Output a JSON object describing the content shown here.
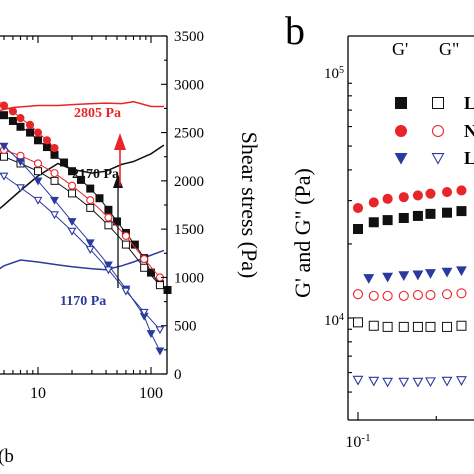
{
  "panel_b_label": "b",
  "colors": {
    "black": "#111111",
    "red": "#e8262a",
    "blue": "#2b3a9e"
  },
  "chart_data": [
    {
      "panel": "a",
      "type": "line",
      "xaxis_label": "(b",
      "x_ticks": [
        "10",
        "100"
      ],
      "x_scale": "log",
      "ylabel_right": "Shear stress (Pa)",
      "ylim_right": [
        0,
        3500
      ],
      "y_ticks_right": [
        "0",
        "500",
        "1000",
        "1500",
        "2000",
        "2500",
        "3000",
        "3500"
      ],
      "annotations": [
        {
          "text": "2805 Pa",
          "color": "#e8262a"
        },
        {
          "text": "2170 Pa",
          "color": "#111111"
        },
        {
          "text": "1170 Pa",
          "color": "#2b3a9e"
        }
      ],
      "series": [
        {
          "kind": "stress",
          "color": "#e8262a",
          "x": [
            3.5,
            6,
            10,
            15,
            20,
            30,
            40,
            55,
            70,
            100,
            130
          ],
          "y": [
            2700,
            2760,
            2780,
            2780,
            2790,
            2800,
            2805,
            2800,
            2820,
            2770,
            2770
          ]
        },
        {
          "kind": "stress",
          "color": "#111111",
          "x": [
            3.5,
            5,
            7,
            10,
            15,
            20,
            30,
            40,
            55,
            70,
            100,
            130
          ],
          "y": [
            1600,
            1750,
            1900,
            2050,
            2180,
            2120,
            2080,
            2100,
            2170,
            2200,
            2280,
            2370
          ]
        },
        {
          "kind": "stress",
          "color": "#2b3a9e",
          "x": [
            3.5,
            5,
            7,
            10,
            15,
            20,
            30,
            40,
            55,
            70,
            100,
            130
          ],
          "y": [
            1000,
            1120,
            1180,
            1160,
            1130,
            1110,
            1090,
            1080,
            1120,
            1160,
            1230,
            1280
          ]
        },
        {
          "kind": "modulus",
          "marker": "square-filled",
          "color": "#111111",
          "x": [
            3.5,
            4.2,
            5,
            6,
            7,
            8.5,
            10,
            12,
            14,
            17,
            20,
            24,
            29,
            35,
            42,
            50,
            60,
            72,
            87,
            100,
            120,
            140
          ],
          "y": [
            2800,
            2740,
            2680,
            2620,
            2560,
            2500,
            2420,
            2350,
            2270,
            2190,
            2100,
            2010,
            1920,
            1820,
            1700,
            1580,
            1460,
            1340,
            1200,
            1050,
            930,
            870
          ]
        },
        {
          "kind": "modulus",
          "marker": "square-open",
          "color": "#111111",
          "x": [
            3.5,
            5,
            7,
            10,
            14,
            20,
            29,
            42,
            60,
            87,
            120
          ],
          "y": [
            2300,
            2250,
            2180,
            2100,
            2000,
            1870,
            1720,
            1540,
            1340,
            1100,
            920
          ]
        },
        {
          "kind": "modulus",
          "marker": "circle-filled",
          "color": "#e8262a",
          "x": [
            3.5,
            4.2,
            5,
            6,
            7,
            8.5,
            10,
            12,
            14
          ],
          "y": [
            2900,
            2850,
            2780,
            2720,
            2650,
            2580,
            2500,
            2420,
            2340
          ]
        },
        {
          "kind": "modulus",
          "marker": "circle-open",
          "color": "#e8262a",
          "x": [
            3.5,
            5,
            7,
            10,
            14,
            20,
            29,
            42,
            60,
            87,
            120
          ],
          "y": [
            2380,
            2320,
            2260,
            2180,
            2080,
            1950,
            1800,
            1620,
            1430,
            1190,
            1000
          ]
        },
        {
          "kind": "modulus",
          "marker": "triangle-filled",
          "color": "#2b3a9e",
          "x": [
            3.5,
            5,
            7,
            10,
            14,
            20,
            29,
            42,
            60,
            87,
            100,
            120
          ],
          "y": [
            2500,
            2360,
            2200,
            2000,
            1800,
            1580,
            1360,
            1130,
            880,
            600,
            420,
            240
          ]
        },
        {
          "kind": "modulus",
          "marker": "triangle-open",
          "color": "#2b3a9e",
          "x": [
            3.5,
            5,
            7,
            10,
            14,
            20,
            29,
            42,
            60,
            87,
            120
          ],
          "y": [
            2150,
            2050,
            1930,
            1800,
            1650,
            1480,
            1290,
            1080,
            860,
            640,
            460
          ]
        }
      ]
    },
    {
      "panel": "b",
      "type": "scatter",
      "ylabel": "G' and G\" (Pa)",
      "x_scale": "log",
      "y_scale": "log",
      "x_ticks": [
        "10-1"
      ],
      "y_ticks": [
        "104",
        "105"
      ],
      "legend_headers": [
        "G'",
        "G\""
      ],
      "legend_labels": [
        "L",
        "N",
        "L"
      ],
      "series": [
        {
          "marker": "circle-filled",
          "color": "#e8262a",
          "x": [
            0.1,
            0.115,
            0.13,
            0.15,
            0.17,
            0.19,
            0.22,
            0.25,
            0.28,
            0.32,
            0.36
          ],
          "y": [
            28000,
            29500,
            30500,
            31000,
            31500,
            32000,
            32500,
            33000,
            33500,
            34000,
            34500
          ]
        },
        {
          "marker": "square-filled",
          "color": "#111111",
          "x": [
            0.1,
            0.115,
            0.13,
            0.15,
            0.17,
            0.19,
            0.22,
            0.25,
            0.28,
            0.32,
            0.36
          ],
          "y": [
            23000,
            24500,
            25000,
            25500,
            26000,
            26500,
            26800,
            27200,
            27600,
            28000,
            28300
          ]
        },
        {
          "marker": "triangle-filled",
          "color": "#2b3a9e",
          "x": [
            0.11,
            0.13,
            0.15,
            0.17,
            0.19,
            0.22,
            0.25,
            0.28,
            0.32,
            0.36
          ],
          "y": [
            14500,
            14700,
            14900,
            15000,
            15200,
            15400,
            15600,
            15800,
            16000,
            16200
          ]
        },
        {
          "marker": "circle-open",
          "color": "#e8262a",
          "x": [
            0.1,
            0.115,
            0.13,
            0.15,
            0.17,
            0.19,
            0.22,
            0.25,
            0.28
          ],
          "y": [
            12500,
            12300,
            12300,
            12300,
            12400,
            12400,
            12500,
            12600,
            12700
          ]
        },
        {
          "marker": "square-open",
          "color": "#111111",
          "x": [
            0.1,
            0.115,
            0.13,
            0.15,
            0.17,
            0.19,
            0.22,
            0.25
          ],
          "y": [
            9600,
            9300,
            9200,
            9200,
            9200,
            9200,
            9200,
            9300
          ]
        },
        {
          "marker": "triangle-open",
          "color": "#2b3a9e",
          "x": [
            0.1,
            0.115,
            0.13,
            0.15,
            0.17,
            0.19,
            0.22,
            0.25,
            0.28,
            0.32
          ],
          "y": [
            5600,
            5550,
            5500,
            5500,
            5500,
            5520,
            5550,
            5580,
            5600,
            5650
          ]
        }
      ]
    }
  ]
}
